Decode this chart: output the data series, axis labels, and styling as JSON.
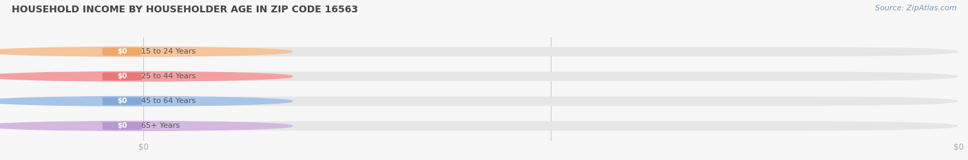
{
  "title": "HOUSEHOLD INCOME BY HOUSEHOLDER AGE IN ZIP CODE 16563",
  "source_text": "Source: ZipAtlas.com",
  "categories": [
    "15 to 24 Years",
    "25 to 44 Years",
    "45 to 64 Years",
    "65+ Years"
  ],
  "values": [
    0,
    0,
    0,
    0
  ],
  "bar_colors": [
    "#f5c49a",
    "#f5a0a0",
    "#aac4e8",
    "#d4b8e0"
  ],
  "circle_colors": [
    "#f5c49a",
    "#f5a0a0",
    "#aac4e8",
    "#d4b8e0"
  ],
  "value_badge_colors": [
    "#f0a868",
    "#e87878",
    "#82aad4",
    "#b898d0"
  ],
  "background_color": "#f7f7f7",
  "bar_bg_color": "#e6e6e6",
  "title_color": "#444444",
  "tick_label_color": "#aaaaaa",
  "source_color": "#7a9ab8",
  "figsize": [
    14.06,
    2.33
  ],
  "dpi": 100
}
